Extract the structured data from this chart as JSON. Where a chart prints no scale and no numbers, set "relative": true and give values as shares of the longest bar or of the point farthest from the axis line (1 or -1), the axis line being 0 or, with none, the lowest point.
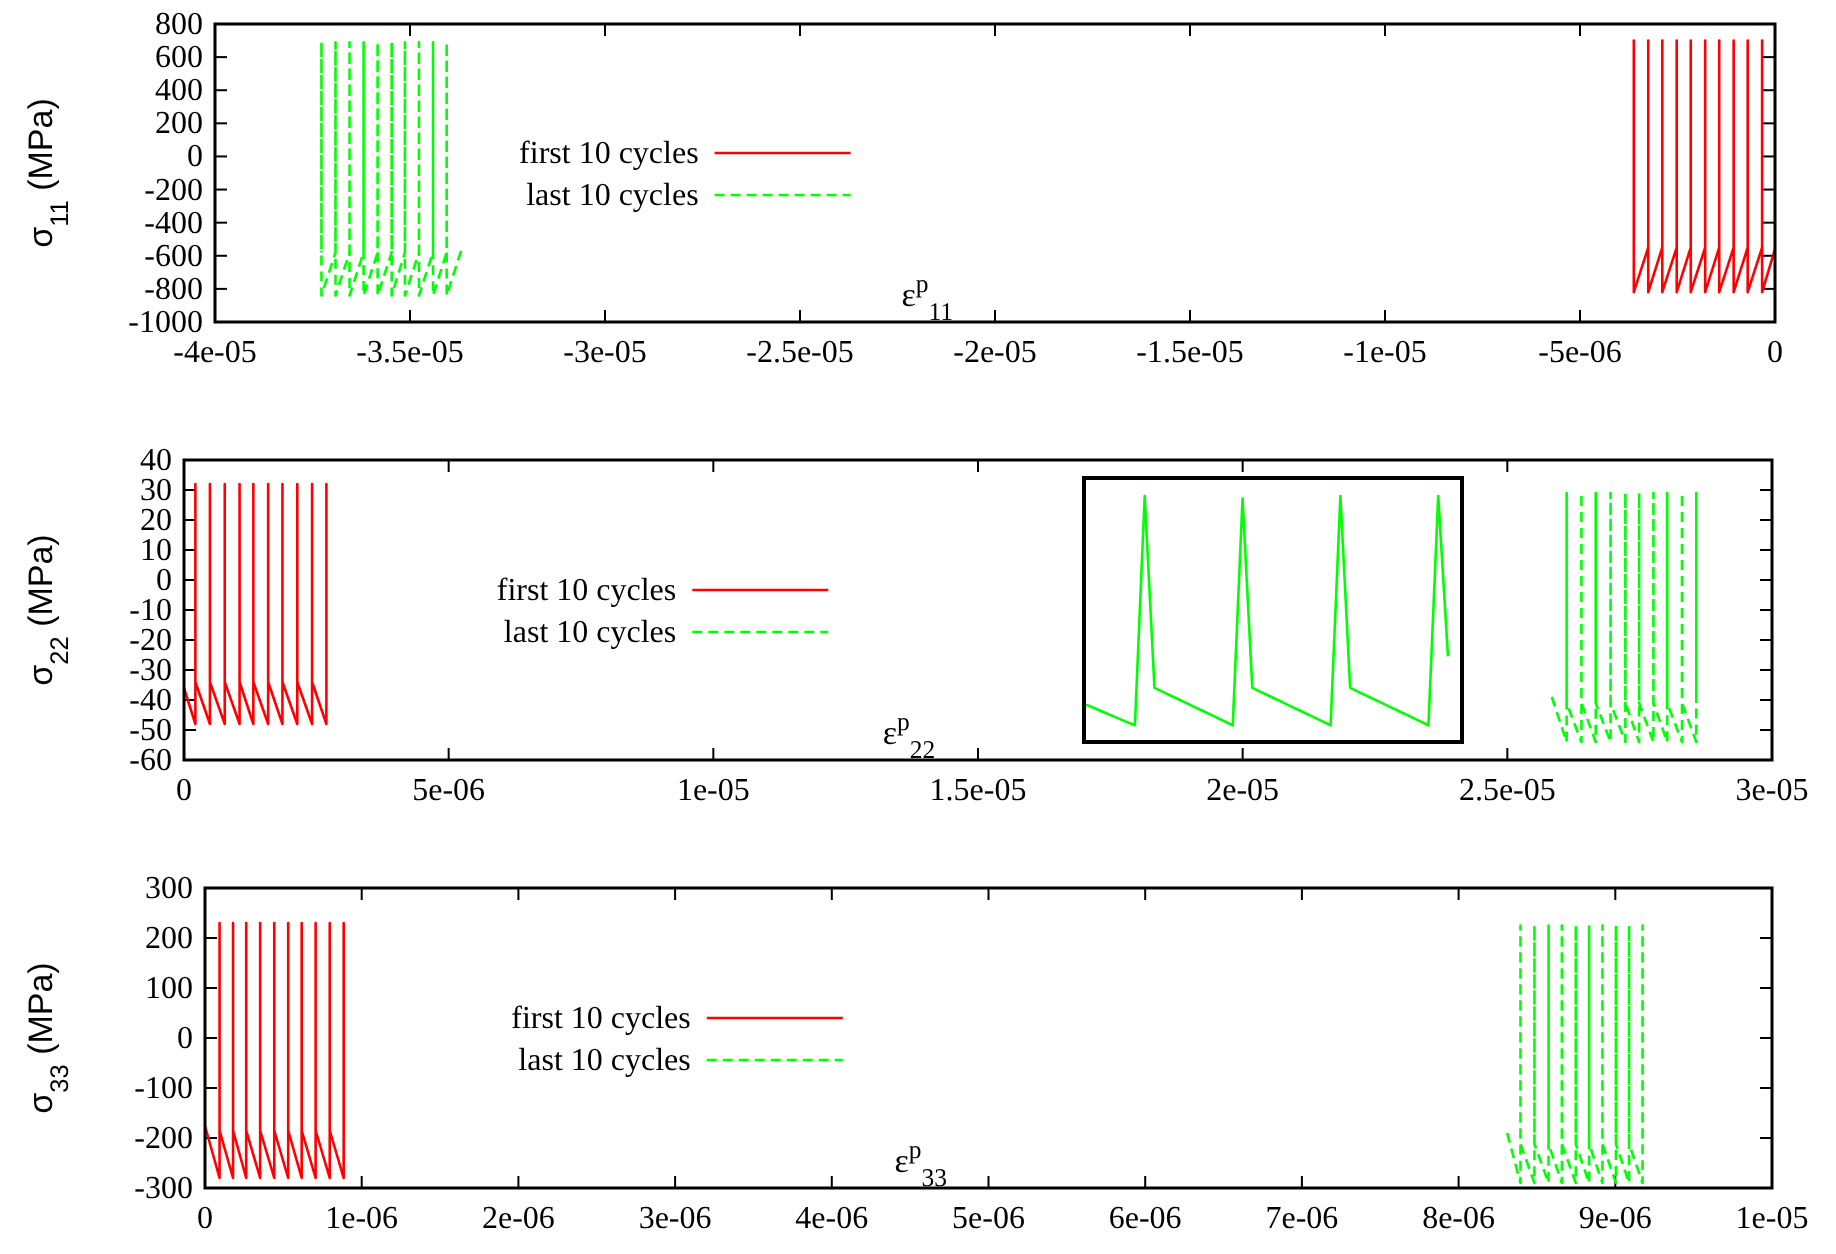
{
  "chart_data": [
    {
      "type": "line",
      "ylabel": "σ$_{11}$ (MPa)",
      "xlabel": "ε$^{p}$$_{11}$",
      "xlim": [
        -4e-05,
        0
      ],
      "ylim": [
        -1000,
        800
      ],
      "xticks": [
        {
          "value": -4e-05,
          "label": "-4e-05"
        },
        {
          "value": -3.5e-05,
          "label": "-3.5e-05"
        },
        {
          "value": -3e-05,
          "label": "-3e-05"
        },
        {
          "value": -2.5e-05,
          "label": "-2.5e-05"
        },
        {
          "value": -2e-05,
          "label": "-2e-05"
        },
        {
          "value": -1.5e-05,
          "label": "-1.5e-05"
        },
        {
          "value": -1e-05,
          "label": "-1e-05"
        },
        {
          "value": -5e-06,
          "label": "-5e-06"
        },
        {
          "value": 0,
          "label": "0"
        }
      ],
      "yticks": [
        800,
        600,
        400,
        200,
        0,
        -200,
        -400,
        -600,
        -800,
        -1000
      ],
      "legend": "left",
      "series": [
        {
          "name": "first 10 cycles",
          "color": "#ff0000",
          "line_style": "solid",
          "x": [
            0,
            -3.3e-07,
            -3.3e-07,
            -3.3e-07,
            -7e-07,
            -7e-07,
            -7e-07,
            -1.06e-06,
            -1.06e-06,
            -1.06e-06,
            -1.43e-06,
            -1.43e-06,
            -1.43e-06,
            -1.79e-06,
            -1.79e-06,
            -1.79e-06,
            -2.16e-06,
            -2.16e-06,
            -2.16e-06,
            -2.52e-06,
            -2.52e-06,
            -2.52e-06,
            -2.89e-06,
            -2.89e-06,
            -2.89e-06,
            -3.25e-06,
            -3.25e-06,
            -3.25e-06,
            -3.62e-06,
            -3.62e-06,
            -3.62e-06
          ],
          "values": [
            -560,
            -820,
            700,
            -550,
            -820,
            700,
            -550,
            -820,
            700,
            -550,
            -820,
            700,
            -550,
            -820,
            700,
            -550,
            -820,
            700,
            -550,
            -820,
            700,
            -550,
            -820,
            700,
            -550,
            -820,
            700,
            -550,
            -820,
            700,
            -550
          ]
        },
        {
          "name": "last 10 cycles",
          "color": "#00ff00",
          "line_style": "dashed",
          "x": [
            -3.369e-05,
            -3.406e-05,
            -3.406e-05,
            -3.406e-05,
            -3.441e-05,
            -3.441e-05,
            -3.441e-05,
            -3.477e-05,
            -3.477e-05,
            -3.477e-05,
            -3.513e-05,
            -3.513e-05,
            -3.513e-05,
            -3.547e-05,
            -3.547e-05,
            -3.547e-05,
            -3.583e-05,
            -3.583e-05,
            -3.583e-05,
            -3.619e-05,
            -3.619e-05,
            -3.619e-05,
            -3.655e-05,
            -3.655e-05,
            -3.655e-05,
            -3.691e-05,
            -3.691e-05,
            -3.691e-05,
            -3.727e-05,
            -3.727e-05,
            -3.727e-05
          ],
          "values": [
            -570,
            -840,
            690,
            -580,
            -840,
            690,
            -580,
            -840,
            690,
            -580,
            -840,
            690,
            -580,
            -840,
            690,
            -580,
            -840,
            690,
            -580,
            -840,
            690,
            -580,
            -840,
            690,
            -580,
            -840,
            690,
            -580,
            -840,
            690,
            -580
          ]
        }
      ]
    },
    {
      "type": "line",
      "ylabel": "σ$_{22}$ (MPa)",
      "xlabel": "ε$^{p}$$_{22}$",
      "xlim": [
        0,
        3e-05
      ],
      "ylim": [
        -60,
        40
      ],
      "xticks": [
        {
          "value": 0,
          "label": "0"
        },
        {
          "value": 5e-06,
          "label": "5e-06"
        },
        {
          "value": 1e-05,
          "label": "1e-05"
        },
        {
          "value": 1.5e-05,
          "label": "1.5e-05"
        },
        {
          "value": 2e-05,
          "label": "2e-05"
        },
        {
          "value": 2.5e-05,
          "label": "2.5e-05"
        },
        {
          "value": 3e-05,
          "label": "3e-05"
        }
      ],
      "yticks": [
        40,
        30,
        20,
        10,
        0,
        -10,
        -20,
        -30,
        -40,
        -50,
        -60
      ],
      "legend": "left",
      "series": [
        {
          "name": "first 10 cycles",
          "color": "#ff0000",
          "line_style": "solid",
          "x": [
            0,
            2.15e-07,
            2.15e-07,
            2.15e-07,
            4.9e-07,
            4.9e-07,
            4.9e-07,
            7.7e-07,
            7.7e-07,
            7.7e-07,
            1.05e-06,
            1.05e-06,
            1.05e-06,
            1.31e-06,
            1.31e-06,
            1.31e-06,
            1.59e-06,
            1.59e-06,
            1.59e-06,
            1.86e-06,
            1.86e-06,
            1.86e-06,
            2.14e-06,
            2.14e-06,
            2.14e-06,
            2.42e-06,
            2.42e-06,
            2.42e-06,
            2.69e-06,
            2.69e-06,
            2.69e-06
          ],
          "values": [
            -36,
            -48,
            32,
            -34,
            -48,
            32,
            -34,
            -48,
            32,
            -34,
            -48,
            32,
            -34,
            -48,
            32,
            -34,
            -48,
            32,
            -34,
            -48,
            32,
            -34,
            -48,
            32,
            -34,
            -48,
            32,
            -34,
            -48,
            32,
            -34
          ]
        },
        {
          "name": "last 10 cycles",
          "color": "#00ff00",
          "line_style": "dashed",
          "x": [
            2.584e-05,
            2.612e-05,
            2.612e-05,
            2.612e-05,
            2.64e-05,
            2.64e-05,
            2.64e-05,
            2.667e-05,
            2.667e-05,
            2.667e-05,
            2.695e-05,
            2.695e-05,
            2.695e-05,
            2.723e-05,
            2.723e-05,
            2.723e-05,
            2.749e-05,
            2.749e-05,
            2.749e-05,
            2.776e-05,
            2.776e-05,
            2.776e-05,
            2.802e-05,
            2.802e-05,
            2.802e-05,
            2.83e-05,
            2.83e-05,
            2.83e-05,
            2.857e-05,
            2.857e-05,
            2.857e-05
          ],
          "values": [
            -39,
            -54,
            29,
            -41,
            -54,
            29,
            -41,
            -54,
            29,
            -41,
            -54,
            29,
            -41,
            -54,
            29,
            -41,
            -54,
            29,
            -41,
            -54,
            29,
            -41,
            -54,
            29,
            -41,
            -54,
            29,
            -41,
            -54,
            29,
            -41
          ]
        }
      ]
    },
    {
      "type": "line",
      "relative": true,
      "categories": [
        null,
        null,
        null,
        null,
        null,
        null,
        null,
        null,
        null,
        null,
        null,
        null,
        null,
        null,
        null,
        null,
        null,
        null,
        null,
        null,
        null,
        null,
        null,
        null,
        null,
        null,
        null,
        null,
        null,
        null,
        null,
        null,
        null,
        null,
        null,
        null,
        null,
        null
      ],
      "series": [
        {
          "color": "#00ff00",
          "line_style": "solid",
          "values": [
            0.152,
            0.135,
            0.118,
            0.101,
            0.084,
            0.068,
            1,
            0.22,
            0.201,
            0.182,
            0.163,
            0.144,
            0.125,
            0.106,
            0.087,
            0.068,
            0.99,
            0.22,
            0.201,
            0.182,
            0.163,
            0.144,
            0.125,
            0.106,
            0.087,
            0.068,
            1,
            0.22,
            0.201,
            0.182,
            0.163,
            0.144,
            0.125,
            0.106,
            0.087,
            0.068,
            1,
            0.348
          ]
        }
      ]
    },
    {
      "type": "line",
      "ylabel": "σ$_{33}$ (MPa)",
      "xlabel": "ε$^{p}$$_{33}$",
      "xlim": [
        0,
        1e-05
      ],
      "ylim": [
        -300,
        300
      ],
      "xticks": [
        {
          "value": 0,
          "label": "0"
        },
        {
          "value": 1e-06,
          "label": "1e-06"
        },
        {
          "value": 2e-06,
          "label": "2e-06"
        },
        {
          "value": 3e-06,
          "label": "3e-06"
        },
        {
          "value": 4e-06,
          "label": "4e-06"
        },
        {
          "value": 5e-06,
          "label": "5e-06"
        },
        {
          "value": 6e-06,
          "label": "6e-06"
        },
        {
          "value": 7e-06,
          "label": "7e-06"
        },
        {
          "value": 8e-06,
          "label": "8e-06"
        },
        {
          "value": 9e-06,
          "label": "9e-06"
        },
        {
          "value": 1e-05,
          "label": "1e-05"
        }
      ],
      "yticks": [
        300,
        200,
        100,
        0,
        -100,
        -200,
        -300
      ],
      "legend": "left",
      "series": [
        {
          "name": "first 10 cycles",
          "color": "#ff0000",
          "line_style": "solid",
          "x": [
            0,
            9.3e-08,
            9.3e-08,
            9.3e-08,
            1.79e-07,
            1.79e-07,
            1.79e-07,
            2.63e-07,
            2.63e-07,
            2.63e-07,
            3.52e-07,
            3.52e-07,
            3.52e-07,
            4.42e-07,
            4.42e-07,
            4.42e-07,
            5.31e-07,
            5.31e-07,
            5.31e-07,
            6.17e-07,
            6.17e-07,
            6.17e-07,
            7.06e-07,
            7.06e-07,
            7.06e-07,
            7.96e-07,
            7.96e-07,
            7.96e-07,
            8.85e-07,
            8.85e-07,
            8.85e-07
          ],
          "values": [
            -176,
            -280,
            230,
            -185,
            -280,
            230,
            -185,
            -280,
            230,
            -185,
            -280,
            230,
            -185,
            -280,
            230,
            -185,
            -280,
            230,
            -185,
            -280,
            230,
            -185,
            -280,
            230,
            -185,
            -280,
            230,
            -185,
            -280,
            230,
            -185
          ]
        },
        {
          "name": "last 10 cycles",
          "color": "#00ff00",
          "line_style": "dashed",
          "x": [
            8.31e-06,
            8.395e-06,
            8.395e-06,
            8.395e-06,
            8.484e-06,
            8.484e-06,
            8.484e-06,
            8.574e-06,
            8.574e-06,
            8.574e-06,
            8.659e-06,
            8.659e-06,
            8.659e-06,
            8.748e-06,
            8.748e-06,
            8.748e-06,
            8.833e-06,
            8.833e-06,
            8.833e-06,
            8.918e-06,
            8.918e-06,
            8.918e-06,
            9.004e-06,
            9.004e-06,
            9.004e-06,
            9.088e-06,
            9.088e-06,
            9.088e-06,
            9.174e-06,
            9.174e-06,
            9.174e-06
          ],
          "values": [
            -190,
            -290,
            225,
            -212,
            -290,
            225,
            -212,
            -290,
            225,
            -212,
            -290,
            225,
            -212,
            -290,
            225,
            -212,
            -290,
            225,
            -212,
            -290,
            225,
            -212,
            -290,
            225,
            -212,
            -290,
            225,
            -212,
            -290,
            225,
            -212
          ]
        }
      ]
    }
  ]
}
